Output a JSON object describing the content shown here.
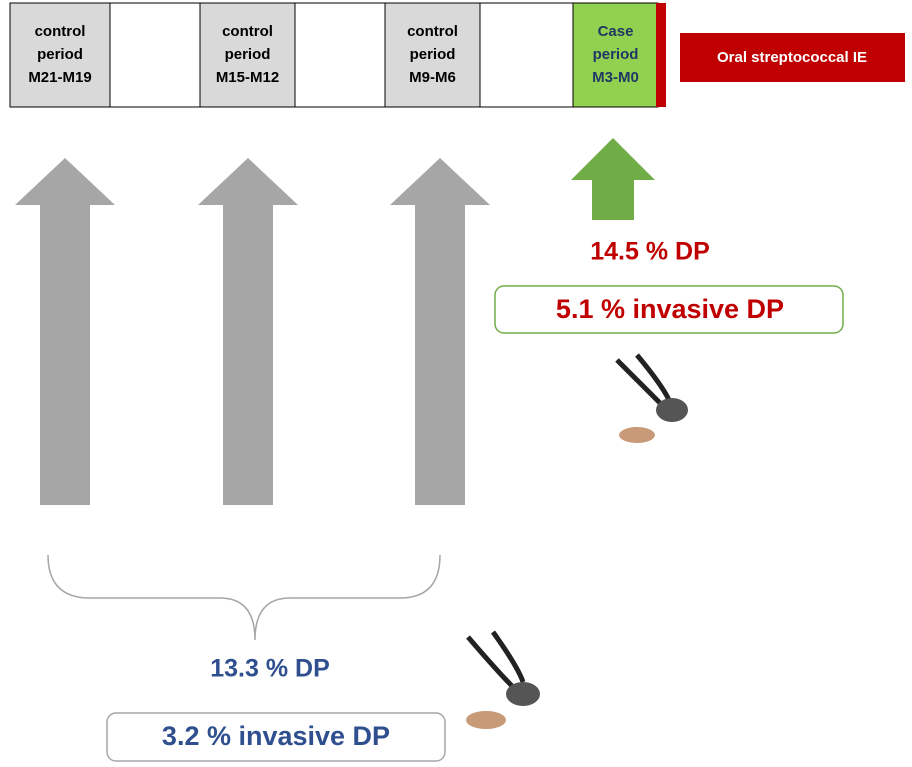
{
  "timeline": {
    "periods": [
      {
        "lines": [
          "control",
          "period",
          "M21-M19"
        ]
      },
      {
        "lines": [
          "control",
          "period",
          "M15-M12"
        ]
      },
      {
        "lines": [
          "control",
          "period",
          "M9-M6"
        ]
      },
      {
        "lines": [
          "Case",
          "period",
          "M3-M0"
        ]
      }
    ],
    "event": "Oral streptococcal IE"
  },
  "case": {
    "dp": "14.5 % DP",
    "invasive": "5.1 % invasive DP"
  },
  "control": {
    "dp": "13.3 % DP",
    "invasive": "3.2 % invasive DP"
  }
}
